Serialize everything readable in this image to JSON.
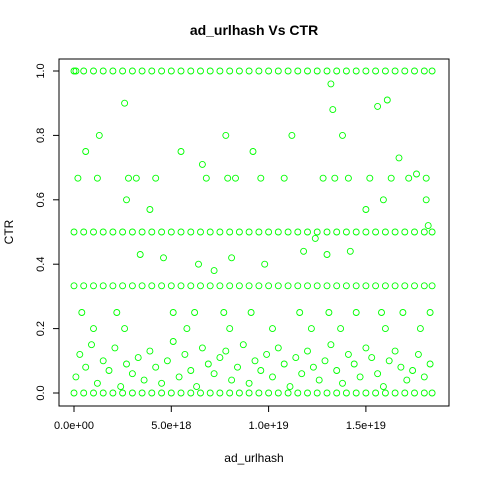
{
  "chart_data": {
    "type": "scatter",
    "title": "ad_urlhash Vs CTR",
    "xlabel": "ad_urlhash",
    "ylabel": "CTR",
    "xlim": [
      0,
      1.85e+19
    ],
    "ylim": [
      0,
      1.0
    ],
    "x_ticks": [
      0,
      5e+18,
      1e+19,
      1.5e+19
    ],
    "x_tick_labels": [
      "0.0e+00",
      "5.0e+18",
      "1.0e+19",
      "1.5e+19"
    ],
    "y_ticks": [
      0,
      0.2,
      0.4,
      0.6,
      0.8,
      1.0
    ],
    "y_tick_labels": [
      "0.0",
      "0.2",
      "0.4",
      "0.6",
      "0.8",
      "1.0"
    ],
    "grid": false,
    "legend": "none",
    "marker": "open-circle",
    "color": "#00ff00",
    "series": [
      {
        "x": [
          0,
          1e+17,
          5e+17,
          1e+18,
          1.5e+18,
          2e+18,
          2.5e+18,
          3e+18,
          3.5e+18,
          4e+18,
          4.5e+18,
          5e+18,
          5.5e+18,
          6e+18,
          6.5e+18,
          7e+18,
          7.5e+18,
          8e+18,
          8.5e+18,
          9e+18,
          9.5e+18,
          1e+19,
          1.05e+19,
          1.1e+19,
          1.15e+19,
          1.2e+19,
          1.25e+19,
          1.3e+19,
          1.35e+19,
          1.4e+19,
          1.45e+19,
          1.5e+19,
          1.55e+19,
          1.6e+19,
          1.65e+19,
          1.7e+19,
          1.75e+19,
          1.8e+19,
          1.84e+19
        ],
        "y": [
          1.0,
          1.0,
          1.0,
          1.0,
          1.0,
          1.0,
          1.0,
          1.0,
          1.0,
          1.0,
          1.0,
          1.0,
          1.0,
          1.0,
          1.0,
          1.0,
          1.0,
          1.0,
          1.0,
          1.0,
          1.0,
          1.0,
          1.0,
          1.0,
          1.0,
          1.0,
          1.0,
          1.0,
          1.0,
          1.0,
          1.0,
          1.0,
          1.0,
          1.0,
          1.0,
          1.0,
          1.0,
          1.0,
          1.0
        ]
      },
      {
        "x": [
          0,
          5e+17,
          1e+18,
          1.5e+18,
          2e+18,
          2.5e+18,
          3e+18,
          3.5e+18,
          4e+18,
          4.5e+18,
          5e+18,
          5.5e+18,
          6e+18,
          6.5e+18,
          7e+18,
          7.5e+18,
          8e+18,
          8.5e+18,
          9e+18,
          9.5e+18,
          1e+19,
          1.05e+19,
          1.1e+19,
          1.15e+19,
          1.2e+19,
          1.25e+19,
          1.3e+19,
          1.35e+19,
          1.4e+19,
          1.45e+19,
          1.5e+19,
          1.55e+19,
          1.6e+19,
          1.65e+19,
          1.7e+19,
          1.75e+19,
          1.8e+19,
          1.84e+19
        ],
        "y": [
          0.5,
          0.5,
          0.5,
          0.5,
          0.5,
          0.5,
          0.5,
          0.5,
          0.5,
          0.5,
          0.5,
          0.5,
          0.5,
          0.5,
          0.5,
          0.5,
          0.5,
          0.5,
          0.5,
          0.5,
          0.5,
          0.5,
          0.5,
          0.5,
          0.5,
          0.5,
          0.5,
          0.5,
          0.5,
          0.5,
          0.5,
          0.5,
          0.5,
          0.5,
          0.5,
          0.5,
          0.5,
          0.5
        ]
      },
      {
        "x": [
          0,
          5e+17,
          1e+18,
          1.5e+18,
          2e+18,
          2.5e+18,
          3e+18,
          3.5e+18,
          4e+18,
          4.5e+18,
          5e+18,
          5.5e+18,
          6e+18,
          6.5e+18,
          7e+18,
          7.5e+18,
          8e+18,
          8.5e+18,
          9e+18,
          9.5e+18,
          1e+19,
          1.05e+19,
          1.1e+19,
          1.15e+19,
          1.2e+19,
          1.25e+19,
          1.3e+19,
          1.35e+19,
          1.4e+19,
          1.45e+19,
          1.5e+19,
          1.55e+19,
          1.6e+19,
          1.65e+19,
          1.7e+19,
          1.75e+19,
          1.8e+19,
          1.84e+19
        ],
        "y": [
          0.333,
          0.333,
          0.333,
          0.333,
          0.333,
          0.333,
          0.333,
          0.333,
          0.333,
          0.333,
          0.333,
          0.333,
          0.333,
          0.333,
          0.333,
          0.333,
          0.333,
          0.333,
          0.333,
          0.333,
          0.333,
          0.333,
          0.333,
          0.333,
          0.333,
          0.333,
          0.333,
          0.333,
          0.333,
          0.333,
          0.333,
          0.333,
          0.333,
          0.333,
          0.333,
          0.333,
          0.333,
          0.333
        ]
      },
      {
        "x": [
          0,
          5e+17,
          1e+18,
          1.5e+18,
          2e+18,
          2.5e+18,
          3e+18,
          3.5e+18,
          4e+18,
          4.5e+18,
          5e+18,
          5.5e+18,
          6e+18,
          6.5e+18,
          7e+18,
          7.5e+18,
          8e+18,
          8.5e+18,
          9e+18,
          9.5e+18,
          1e+19,
          1.05e+19,
          1.1e+19,
          1.15e+19,
          1.2e+19,
          1.25e+19,
          1.3e+19,
          1.35e+19,
          1.4e+19,
          1.45e+19,
          1.5e+19,
          1.55e+19,
          1.6e+19,
          1.65e+19,
          1.7e+19,
          1.75e+19,
          1.8e+19,
          1.84e+19
        ],
        "y": [
          0,
          0,
          0,
          0,
          0,
          0,
          0,
          0,
          0,
          0,
          0,
          0,
          0,
          0,
          0,
          0,
          0,
          0,
          0,
          0,
          0,
          0,
          0,
          0,
          0,
          0,
          0,
          0,
          0,
          0,
          0,
          0,
          0,
          0,
          0,
          0,
          0,
          0
        ]
      },
      {
        "x": [
          2e+17,
          1.2e+18,
          2.8e+18,
          3.2e+18,
          4.2e+18,
          6.8e+18,
          7.9e+18,
          8.3e+18,
          9.6e+18,
          1.08e+19,
          1.28e+19,
          1.34e+19,
          1.41e+19,
          1.52e+19,
          1.63e+19,
          1.72e+19,
          1.81e+19,
          4e+17,
          2.2e+18,
          5.1e+18,
          6.2e+18,
          7.7e+18,
          9.1e+18,
          1.16e+19,
          1.31e+19,
          1.45e+19,
          1.58e+19,
          1.69e+19,
          1.83e+19,
          1e+18,
          2.6e+18,
          5.8e+18,
          8e+18,
          1.02e+19,
          1.22e+19,
          1.37e+19,
          1.6e+19,
          1.78e+19
        ],
        "y": [
          0.667,
          0.667,
          0.667,
          0.667,
          0.667,
          0.667,
          0.667,
          0.667,
          0.667,
          0.667,
          0.667,
          0.667,
          0.667,
          0.667,
          0.667,
          0.667,
          0.667,
          0.25,
          0.25,
          0.25,
          0.25,
          0.25,
          0.25,
          0.25,
          0.25,
          0.25,
          0.25,
          0.25,
          0.25,
          0.2,
          0.2,
          0.2,
          0.2,
          0.2,
          0.2,
          0.2,
          0.2,
          0.2
        ]
      },
      {
        "x": [
          1.3e+18,
          2.6e+18,
          3.9e+18,
          5.5e+18,
          6.6e+18,
          7.8e+18,
          9.2e+18,
          1.12e+19,
          1.32e+19,
          1.33e+19,
          1.38e+19,
          1.56e+19,
          1.61e+19,
          1.81e+19,
          6e+17,
          2.7e+18,
          3.4e+18,
          4.6e+18,
          6.4e+18,
          7.2e+18,
          8.1e+18,
          9.8e+18,
          1.18e+19,
          1.24e+19,
          1.3e+19,
          1.42e+19,
          1.5e+19,
          1.59e+19,
          1.67e+19,
          1.76e+19,
          1.82e+19
        ],
        "y": [
          0.8,
          0.9,
          0.57,
          0.75,
          0.71,
          0.8,
          0.75,
          0.8,
          0.96,
          0.88,
          0.8,
          0.89,
          0.91,
          0.6,
          0.75,
          0.6,
          0.43,
          0.42,
          0.4,
          0.38,
          0.42,
          0.4,
          0.44,
          0.48,
          0.43,
          0.44,
          0.57,
          0.6,
          0.73,
          0.68,
          0.52
        ]
      },
      {
        "x": [
          1e+17,
          3e+17,
          6e+17,
          9e+17,
          1.2e+18,
          1.5e+18,
          1.8e+18,
          2.1e+18,
          2.4e+18,
          2.7e+18,
          3e+18,
          3.3e+18,
          3.6e+18,
          3.9e+18,
          4.2e+18,
          4.5e+18,
          4.8e+18,
          5.1e+18,
          5.4e+18,
          5.7e+18,
          6e+18,
          6.3e+18,
          6.6e+18,
          6.9e+18,
          7.2e+18,
          7.5e+18,
          7.8e+18,
          8.1e+18,
          8.4e+18,
          8.7e+18,
          9e+18,
          9.3e+18,
          9.6e+18,
          9.9e+18,
          1.02e+19,
          1.05e+19,
          1.08e+19,
          1.11e+19,
          1.14e+19,
          1.17e+19,
          1.2e+19,
          1.23e+19,
          1.26e+19,
          1.29e+19,
          1.32e+19,
          1.35e+19,
          1.38e+19,
          1.41e+19,
          1.44e+19,
          1.47e+19,
          1.5e+19,
          1.53e+19,
          1.56e+19,
          1.59e+19,
          1.62e+19,
          1.65e+19,
          1.68e+19,
          1.71e+19,
          1.74e+19,
          1.77e+19,
          1.8e+19,
          1.83e+19
        ],
        "y": [
          0.05,
          0.12,
          0.08,
          0.15,
          0.03,
          0.1,
          0.07,
          0.14,
          0.02,
          0.09,
          0.06,
          0.11,
          0.04,
          0.13,
          0.08,
          0.03,
          0.1,
          0.16,
          0.05,
          0.12,
          0.07,
          0.02,
          0.14,
          0.09,
          0.06,
          0.11,
          0.13,
          0.04,
          0.08,
          0.15,
          0.03,
          0.1,
          0.07,
          0.12,
          0.05,
          0.14,
          0.09,
          0.02,
          0.11,
          0.06,
          0.13,
          0.08,
          0.04,
          0.1,
          0.15,
          0.07,
          0.03,
          0.12,
          0.09,
          0.05,
          0.14,
          0.11,
          0.06,
          0.02,
          0.1,
          0.13,
          0.08,
          0.04,
          0.07,
          0.12,
          0.05,
          0.09
        ]
      }
    ]
  }
}
